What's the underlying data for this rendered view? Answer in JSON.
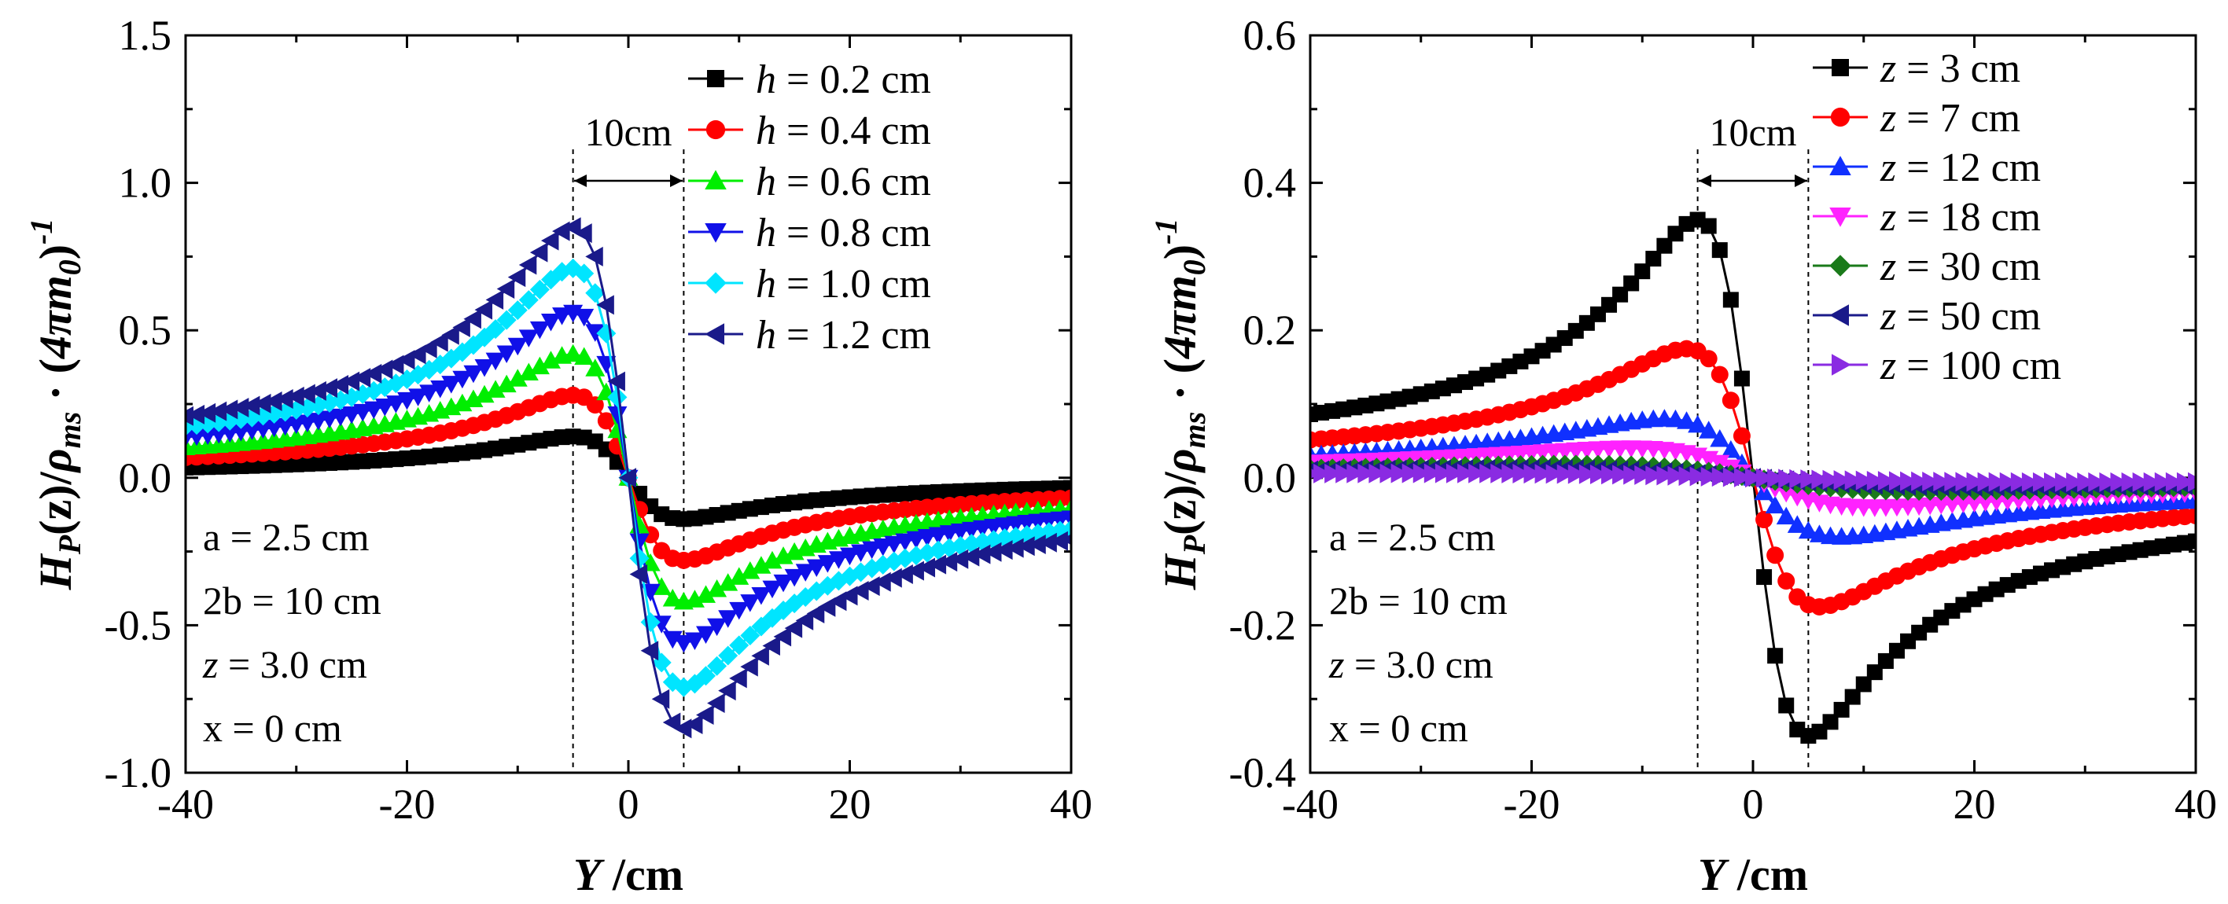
{
  "charts": [
    {
      "yaxis_title": {
        "main": "H",
        "sub1": "P",
        "paren": "(z)/",
        "rho": "ρ",
        "sub2": "ms",
        "dot": " · (",
        "expr": "4πm",
        "sub3": "0",
        "close": ")",
        "sup": "-1"
      },
      "xaxis_title": {
        "var": "Y",
        "unit": " /cm"
      },
      "annotations": {
        "spacing": "10cm",
        "params": [
          "a = 2.5 cm",
          "2b = 10 cm",
          "z = 3.0 cm",
          "x = 0 cm"
        ],
        "italic_var": "z"
      },
      "legend_var": "h"
    },
    {
      "yaxis_title": {
        "main": "H",
        "sub1": "P",
        "paren": "(z)/",
        "rho": "ρ",
        "sub2": "ms",
        "dot": " · (",
        "expr": "4πm",
        "sub3": "0",
        "close": ")",
        "sup": "-1"
      },
      "xaxis_title": {
        "var": "Y",
        "unit": " /cm"
      },
      "annotations": {
        "spacing": "10cm",
        "params": [
          "a = 2.5 cm",
          "2b = 10 cm",
          "z = 3.0 cm",
          "x = 0 cm"
        ],
        "italic_var": "z"
      },
      "legend_var": "z"
    }
  ],
  "chart_data": [
    {
      "type": "line",
      "x": [
        -40,
        40
      ],
      "xlim": [
        -40,
        40
      ],
      "ylim": [
        -1.0,
        1.5
      ],
      "xticks": [
        "-40",
        "-20",
        "0",
        "20",
        "40"
      ],
      "yticks": [
        "-1.0",
        "-0.5",
        "0.0",
        "0.5",
        "1.0",
        "1.5"
      ],
      "legend_position": "top-right",
      "grid": false,
      "dashed_lines_x": [
        -5,
        5
      ],
      "series": [
        {
          "name": "h = 0.2 cm",
          "value": "0.2 cm",
          "color": "#000000",
          "marker": "square",
          "peak_y": 0.14,
          "peak_x": -5
        },
        {
          "name": "h = 0.4 cm",
          "value": "0.4 cm",
          "color": "#ff0000",
          "marker": "circle",
          "peak_y": 0.28,
          "peak_x": -5
        },
        {
          "name": "h = 0.6 cm",
          "value": "0.6 cm",
          "color": "#00ee00",
          "marker": "triangle-up",
          "peak_y": 0.42,
          "peak_x": -5
        },
        {
          "name": "h = 0.8 cm",
          "value": "0.8 cm",
          "color": "#1010e8",
          "marker": "triangle-down",
          "peak_y": 0.56,
          "peak_x": -5
        },
        {
          "name": "h = 1.0 cm",
          "value": "1.0 cm",
          "color": "#00e5ff",
          "marker": "diamond",
          "peak_y": 0.71,
          "peak_x": -5
        },
        {
          "name": "h = 1.2 cm",
          "value": "1.2 cm",
          "color": "#1a1a8a",
          "marker": "triangle-left",
          "peak_y": 0.85,
          "peak_x": -5
        }
      ]
    },
    {
      "type": "line",
      "x": [
        -40,
        40
      ],
      "xlim": [
        -40,
        40
      ],
      "ylim": [
        -0.4,
        0.6
      ],
      "xticks": [
        "-40",
        "-20",
        "0",
        "20",
        "40"
      ],
      "yticks": [
        "-0.4",
        "-0.2",
        "0.0",
        "0.2",
        "0.4",
        "0.6"
      ],
      "legend_position": "top-right",
      "grid": false,
      "dashed_lines_x": [
        -5,
        5
      ],
      "series": [
        {
          "name": "z = 3 cm",
          "value": "3 cm",
          "color": "#000000",
          "marker": "square",
          "peak_y": 0.35,
          "peak_x": -5
        },
        {
          "name": "z = 7 cm",
          "value": "7 cm",
          "color": "#ff0000",
          "marker": "circle",
          "peak_y": 0.175,
          "peak_x": -6
        },
        {
          "name": "z = 12 cm",
          "value": "12 cm",
          "color": "#1030ff",
          "marker": "triangle-up",
          "peak_y": 0.08,
          "peak_x": -8
        },
        {
          "name": "z = 18 cm",
          "value": "18 cm",
          "color": "#ff22ff",
          "marker": "triangle-down",
          "peak_y": 0.04,
          "peak_x": -11
        },
        {
          "name": "z = 30 cm",
          "value": "30 cm",
          "color": "#1a7a1a",
          "marker": "diamond",
          "peak_y": 0.018,
          "peak_x": -16
        },
        {
          "name": "z = 50 cm",
          "value": "50 cm",
          "color": "#1a1a8a",
          "marker": "triangle-left",
          "peak_y": 0.012,
          "peak_x": -22
        },
        {
          "name": "z = 100 cm",
          "value": "100 cm",
          "color": "#8a2be2",
          "marker": "triangle-right",
          "peak_y": 0.006,
          "peak_x": -30
        }
      ]
    }
  ]
}
